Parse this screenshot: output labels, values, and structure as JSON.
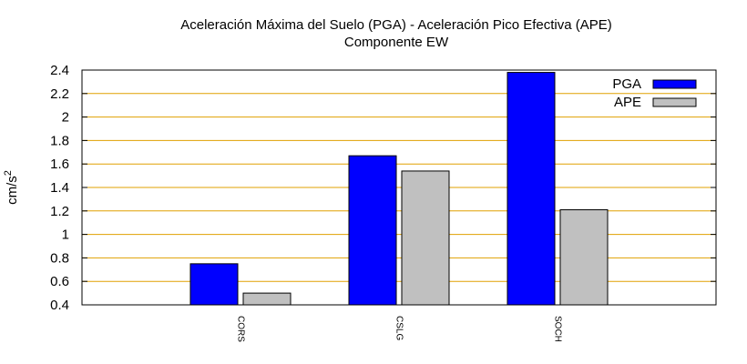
{
  "chart_data": {
    "type": "bar",
    "title": "Aceleración Máxima del Suelo (PGA) -  Aceleración Pico Efectiva (APE)",
    "subtitle": "Componente EW",
    "xlabel": "",
    "ylabel": "cm/s",
    "ylabel_superscript": "2",
    "ylim": [
      0.4,
      2.4
    ],
    "yticks": [
      0.4,
      0.6,
      0.8,
      1,
      1.2,
      1.4,
      1.6,
      1.8,
      2,
      2.2,
      2.4
    ],
    "categories": [
      "CORS",
      "CSLG",
      "SOCH"
    ],
    "series": [
      {
        "name": "PGA",
        "values": [
          0.75,
          1.67,
          2.38
        ],
        "color": "#0000ff"
      },
      {
        "name": "APE",
        "values": [
          0.5,
          1.54,
          1.21
        ],
        "color": "#c0c0c0"
      }
    ],
    "grid": "horizontal",
    "grid_color": "#e0a000",
    "legend": "top-right"
  }
}
